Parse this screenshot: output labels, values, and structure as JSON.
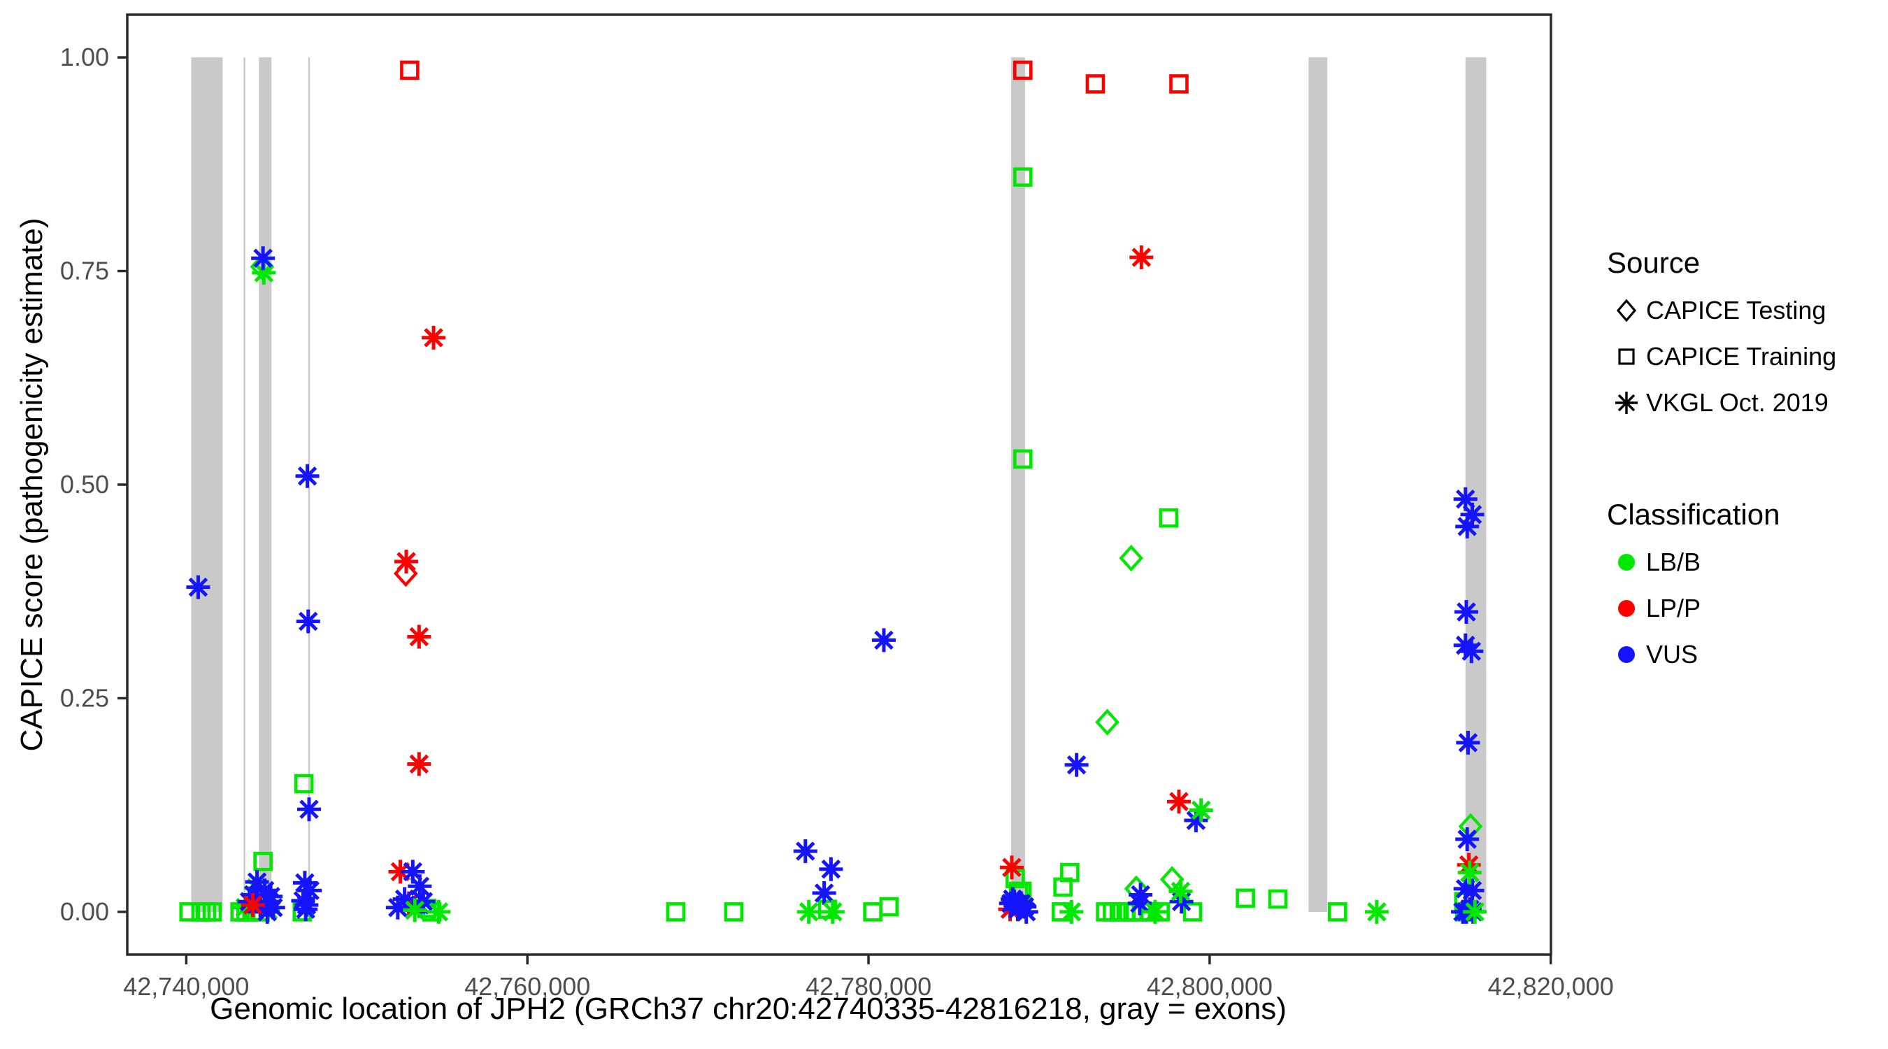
{
  "figure": {
    "background": "#ffffff"
  },
  "chart_data": {
    "type": "scatter",
    "xlabel": "Genomic location of JPH2 (GRCh37 chr20:42740335-42816218, gray = exons)",
    "ylabel": "CAPICE score (pathogenicity estimate)",
    "xlim": [
      42736541,
      42820012
    ],
    "ylim": [
      -0.05,
      1.05
    ],
    "grid": false,
    "x_ticks": [
      {
        "value": 42740000,
        "label": "42,740,000"
      },
      {
        "value": 42760000,
        "label": "42,760,000"
      },
      {
        "value": 42780000,
        "label": "42,780,000"
      },
      {
        "value": 42800000,
        "label": "42,800,000"
      },
      {
        "value": 42820000,
        "label": "42,820,000"
      }
    ],
    "y_ticks": [
      {
        "value": 0.0,
        "label": "0.00"
      },
      {
        "value": 0.25,
        "label": "0.25"
      },
      {
        "value": 0.5,
        "label": "0.50"
      },
      {
        "value": 0.75,
        "label": "0.75"
      },
      {
        "value": 1.0,
        "label": "1.00"
      }
    ],
    "exon_note": "gray vertical bands mark exons, spanning y 0 to 1",
    "exon_color": "#c9c9c9",
    "exons": [
      [
        42740290,
        42742130
      ],
      [
        42743360,
        42743460
      ],
      [
        42744260,
        42745000
      ],
      [
        42747150,
        42747250
      ],
      [
        42788360,
        42789180
      ],
      [
        42805800,
        42806900
      ],
      [
        42815000,
        42816218
      ]
    ],
    "class_codes": {
      "b": "LB/B",
      "p": "LP/P",
      "v": "VUS"
    },
    "class_colors": {
      "LB/B": "#00e800",
      "LP/P": "#ff0000",
      "VUS": "#1414ff"
    },
    "series": [
      {
        "name": "CAPICE Testing",
        "shape": "diamond",
        "points": [
          [
            42744450,
            0.755,
            "b"
          ],
          [
            42752870,
            0.396,
            "p"
          ],
          [
            42794000,
            0.222,
            "b"
          ],
          [
            42795400,
            0.414,
            "b"
          ],
          [
            42795700,
            0.027,
            "b"
          ],
          [
            42797800,
            0.038,
            "b"
          ],
          [
            42815300,
            0.1,
            "b"
          ]
        ]
      },
      {
        "name": "CAPICE Training",
        "shape": "square",
        "points": [
          [
            42740160,
            0,
            "b"
          ],
          [
            42740860,
            0,
            "b"
          ],
          [
            42741190,
            0,
            "b"
          ],
          [
            42741520,
            0,
            "b"
          ],
          [
            42743150,
            0,
            "b"
          ],
          [
            42743500,
            0,
            "b"
          ],
          [
            42743850,
            0,
            "b"
          ],
          [
            42744300,
            0,
            "b"
          ],
          [
            42744500,
            0.059,
            "b"
          ],
          [
            42746900,
            0.15,
            "b"
          ],
          [
            42746800,
            0,
            "b"
          ],
          [
            42753100,
            0.985,
            "p"
          ],
          [
            42754100,
            0.004,
            "b"
          ],
          [
            42754400,
            0,
            "b"
          ],
          [
            42768700,
            0,
            "b"
          ],
          [
            42772100,
            0,
            "b"
          ],
          [
            42777600,
            0.003,
            "b"
          ],
          [
            42780250,
            0,
            "b"
          ],
          [
            42781200,
            0.006,
            "b"
          ],
          [
            42789050,
            0.985,
            "p"
          ],
          [
            42789050,
            0.86,
            "b"
          ],
          [
            42789050,
            0.53,
            "b"
          ],
          [
            42788600,
            0.039,
            "b"
          ],
          [
            42788800,
            0.024,
            "b"
          ],
          [
            42789000,
            0.024,
            "b"
          ],
          [
            42791400,
            0.029,
            "b"
          ],
          [
            42791800,
            0.046,
            "b"
          ],
          [
            42791300,
            0,
            "b"
          ],
          [
            42793300,
            0.969,
            "p"
          ],
          [
            42798200,
            0.969,
            "p"
          ],
          [
            42793900,
            0,
            "b"
          ],
          [
            42794300,
            0,
            "b"
          ],
          [
            42794700,
            0,
            "b"
          ],
          [
            42795100,
            0,
            "b"
          ],
          [
            42795500,
            0,
            "b"
          ],
          [
            42796000,
            0,
            "b"
          ],
          [
            42796500,
            0,
            "b"
          ],
          [
            42797100,
            0,
            "b"
          ],
          [
            42797600,
            0.461,
            "b"
          ],
          [
            42799000,
            0,
            "b"
          ],
          [
            42802100,
            0.016,
            "b"
          ],
          [
            42804000,
            0.015,
            "b"
          ],
          [
            42807500,
            0,
            "b"
          ],
          [
            42814900,
            0.012,
            "b"
          ],
          [
            42814950,
            0,
            "b"
          ]
        ]
      },
      {
        "name": "VKGL Oct. 2019",
        "shape": "asterisk",
        "points": [
          [
            42740700,
            0.38,
            "v"
          ],
          [
            42743450,
            0.005,
            "b"
          ],
          [
            42744100,
            0.028,
            "b"
          ],
          [
            42744500,
            0.01,
            "b"
          ],
          [
            42744800,
            0.002,
            "b"
          ],
          [
            42744550,
            0.748,
            "b"
          ],
          [
            42743700,
            0.012,
            "v"
          ],
          [
            42743950,
            0.02,
            "v"
          ],
          [
            42744150,
            0.035,
            "v"
          ],
          [
            42744350,
            0.008,
            "v"
          ],
          [
            42744600,
            0.025,
            "v"
          ],
          [
            42744850,
            0.012,
            "v"
          ],
          [
            42745100,
            0.005,
            "v"
          ],
          [
            42744950,
            0.018,
            "v"
          ],
          [
            42744750,
            0,
            "v"
          ],
          [
            42744500,
            0.765,
            "v"
          ],
          [
            42743900,
            0.008,
            "p"
          ],
          [
            42747100,
            0.51,
            "v"
          ],
          [
            42747150,
            0.34,
            "v"
          ],
          [
            42747200,
            0.12,
            "v"
          ],
          [
            42746950,
            0.034,
            "v"
          ],
          [
            42746850,
            0.013,
            "v"
          ],
          [
            42747050,
            0.008,
            "v"
          ],
          [
            42747250,
            0.025,
            "v"
          ],
          [
            42747000,
            0.003,
            "v"
          ],
          [
            42754500,
            0.672,
            "p"
          ],
          [
            42752900,
            0.41,
            "p"
          ],
          [
            42753650,
            0.322,
            "p"
          ],
          [
            42753650,
            0.173,
            "p"
          ],
          [
            42752550,
            0.047,
            "p"
          ],
          [
            42753050,
            0.01,
            "p"
          ],
          [
            42753280,
            0.047,
            "v"
          ],
          [
            42753690,
            0.03,
            "v"
          ],
          [
            42752400,
            0.005,
            "v"
          ],
          [
            42752800,
            0.015,
            "v"
          ],
          [
            42753700,
            0.008,
            "v"
          ],
          [
            42753900,
            0.012,
            "v"
          ],
          [
            42753400,
            0.002,
            "b"
          ],
          [
            42754800,
            0,
            "b"
          ],
          [
            42776300,
            0.071,
            "v"
          ],
          [
            42777800,
            0.05,
            "v"
          ],
          [
            42777400,
            0.022,
            "v"
          ],
          [
            42780900,
            0.318,
            "v"
          ],
          [
            42776500,
            0,
            "b"
          ],
          [
            42777900,
            0,
            "b"
          ],
          [
            42788400,
            0.052,
            "p"
          ],
          [
            42788300,
            0.003,
            "p"
          ],
          [
            42788900,
            0.008,
            "p"
          ],
          [
            42788350,
            0.01,
            "v"
          ],
          [
            42788550,
            0.012,
            "v"
          ],
          [
            42788750,
            0.003,
            "v"
          ],
          [
            42788950,
            0.01,
            "v"
          ],
          [
            42789150,
            0.006,
            "v"
          ],
          [
            42788450,
            0.015,
            "v"
          ],
          [
            42789250,
            0,
            "v"
          ],
          [
            42792200,
            0.172,
            "v"
          ],
          [
            42799200,
            0.107,
            "v"
          ],
          [
            42795900,
            0.01,
            "v"
          ],
          [
            42795950,
            0.02,
            "v"
          ],
          [
            42798350,
            0.012,
            "v"
          ],
          [
            42796000,
            0.766,
            "p"
          ],
          [
            42798200,
            0.129,
            "p"
          ],
          [
            42799500,
            0.119,
            "b"
          ],
          [
            42791900,
            0,
            "b"
          ],
          [
            42798300,
            0.024,
            "b"
          ],
          [
            42796800,
            0,
            "b"
          ],
          [
            42809800,
            0,
            "b"
          ],
          [
            42815000,
            0.483,
            "v"
          ],
          [
            42815400,
            0.465,
            "v"
          ],
          [
            42815100,
            0.451,
            "v"
          ],
          [
            42815050,
            0.351,
            "v"
          ],
          [
            42815000,
            0.312,
            "v"
          ],
          [
            42815350,
            0.305,
            "v"
          ],
          [
            42815150,
            0.198,
            "v"
          ],
          [
            42815100,
            0.085,
            "v"
          ],
          [
            42815000,
            0.027,
            "v"
          ],
          [
            42815400,
            0.025,
            "v"
          ],
          [
            42814850,
            0,
            "v"
          ],
          [
            42815050,
            0,
            "v"
          ],
          [
            42815250,
            0.003,
            "v"
          ],
          [
            42815450,
            0,
            "v"
          ],
          [
            42815200,
            0.055,
            "p"
          ],
          [
            42815250,
            0.046,
            "b"
          ],
          [
            42815550,
            0,
            "b"
          ]
        ]
      }
    ]
  },
  "legend": {
    "source_title": "Source",
    "source_items": [
      {
        "label": "CAPICE Testing",
        "shape": "diamond"
      },
      {
        "label": "CAPICE Training",
        "shape": "square"
      },
      {
        "label": "VKGL Oct. 2019",
        "shape": "asterisk"
      }
    ],
    "classification_title": "Classification",
    "classification_items": [
      {
        "label": "LB/B",
        "color": "#00e800"
      },
      {
        "label": "LP/P",
        "color": "#ff0000"
      },
      {
        "label": "VUS",
        "color": "#1414ff"
      }
    ]
  }
}
